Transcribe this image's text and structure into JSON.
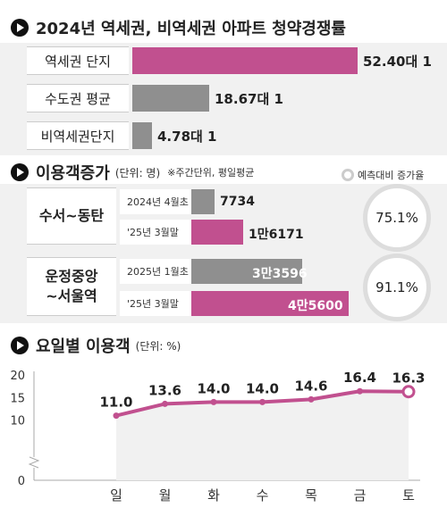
{
  "section1": {
    "title": "2024년 역세권, 비역세권 아파트 청약경쟁률",
    "rows": [
      {
        "label": "역세권 단지",
        "value_text": "52.40대 1",
        "value": 52.4
      },
      {
        "label": "수도권 평균",
        "value_text": "18.67대 1",
        "value": 18.67
      },
      {
        "label": "비역세권단지",
        "value_text": "4.78대 1",
        "value": 4.78
      }
    ]
  },
  "section2": {
    "title": "이용객증가",
    "unit": "(단위: 명)",
    "note": "※주간단위, 평일평균",
    "legend": "예측대비 증가율",
    "groups": [
      {
        "label_line1": "수서~동탄",
        "label_line2": "",
        "rows": [
          {
            "label": "2024년 4월초",
            "value_text": "7734",
            "value": 7734
          },
          {
            "label": "'25년 3월말",
            "value_text": "1만6171",
            "value": 16171
          }
        ],
        "rate": "75.1%"
      },
      {
        "label_line1": "운정중앙",
        "label_line2": "~서울역",
        "rows": [
          {
            "label": "2025년 1월초",
            "value_text": "3만3596",
            "value": 33596
          },
          {
            "label": "'25년 3월말",
            "value_text": "4만5600",
            "value": 45600
          }
        ],
        "rate": "91.1%"
      }
    ]
  },
  "section3": {
    "title": "요일별 이용객",
    "unit": "(단위: %)"
  },
  "chart_data": {
    "type": "area",
    "categories": [
      "일",
      "월",
      "화",
      "수",
      "목",
      "금",
      "토"
    ],
    "values": [
      11.0,
      13.6,
      14.0,
      14.0,
      14.6,
      16.4,
      16.3
    ],
    "value_labels": [
      "11.0",
      "13.6",
      "14.0",
      "14.0",
      "14.6",
      "16.4",
      "16.3"
    ],
    "y_ticks": [
      "20",
      "15",
      "10",
      "0"
    ],
    "ylim": [
      5,
      20
    ],
    "axis_break": true,
    "grid": false
  },
  "colors": {
    "accent": "#c1508f",
    "gray_bar": "#8f8f8f",
    "panel_bg": "#f1f1f1",
    "area_fill": "#f1f1f1"
  }
}
